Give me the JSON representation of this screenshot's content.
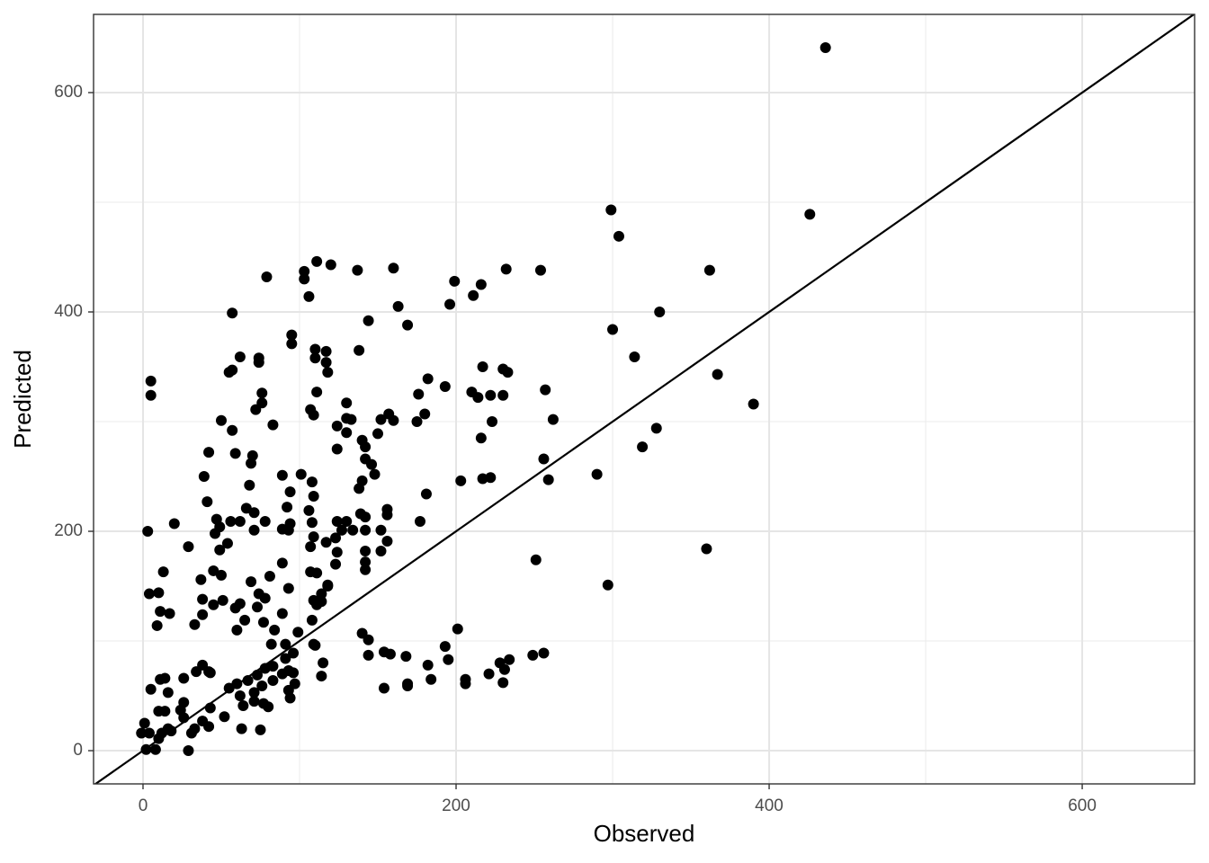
{
  "chart_data": {
    "type": "scatter",
    "x_label": "Observed",
    "y_label": "Predicted",
    "xlim": [
      -31.6,
      671.8
    ],
    "ylim": [
      -30.3,
      671.3
    ],
    "xticks": [
      0,
      200,
      400,
      600
    ],
    "yticks": [
      0,
      200,
      400,
      600
    ],
    "x_minor_grid": [
      100,
      300,
      500
    ],
    "y_minor_grid": [
      100,
      300,
      500
    ],
    "grid": true,
    "identity_line": true,
    "color": "#000000",
    "x": [
      436,
      426,
      299,
      304,
      362,
      330,
      300,
      314,
      367,
      390,
      328,
      319,
      290,
      360,
      297,
      251,
      256,
      259,
      262,
      257,
      254,
      232,
      216,
      199,
      196,
      211,
      233,
      230,
      222,
      214,
      210,
      217,
      193,
      182,
      176,
      180,
      175,
      223,
      230,
      216,
      222,
      217,
      203,
      181,
      177,
      156,
      156,
      156,
      142,
      142,
      142,
      152,
      139,
      142,
      130,
      124,
      123,
      124,
      123,
      117,
      118,
      114,
      109,
      108,
      111,
      107,
      111,
      107,
      109,
      108,
      106,
      109,
      108,
      101,
      94,
      92,
      94,
      93,
      89,
      89,
      89,
      83,
      78,
      76,
      76,
      74,
      74,
      72,
      70,
      69,
      68,
      71,
      71,
      66,
      62,
      62,
      57,
      55,
      57,
      57,
      50,
      59,
      42,
      39,
      41,
      47,
      46,
      56,
      49,
      54,
      49,
      45,
      50,
      37,
      59,
      60,
      51,
      45,
      38,
      38,
      33,
      29,
      20,
      3,
      13,
      4,
      10,
      11,
      9,
      17,
      5,
      5,
      79,
      103,
      111,
      120,
      103,
      137,
      160,
      163,
      169,
      144,
      106,
      95,
      95,
      110,
      117,
      110,
      117,
      118,
      111,
      130,
      130,
      138,
      107,
      109,
      133,
      130,
      124,
      124,
      140,
      142,
      142,
      146,
      148,
      140,
      138,
      150,
      152,
      157,
      160,
      142,
      152,
      134,
      127,
      82,
      91,
      99,
      109,
      115,
      96,
      91,
      83,
      78,
      73,
      67,
      60,
      55,
      62,
      64,
      71,
      77,
      80,
      75,
      63,
      52,
      43,
      42,
      38,
      33,
      31,
      29,
      26,
      24,
      26,
      34,
      43,
      42,
      38,
      26,
      16,
      11,
      14,
      5,
      10,
      14,
      16,
      10,
      8,
      2,
      1,
      -1,
      4,
      12,
      18,
      93,
      94,
      97,
      93,
      89,
      83,
      76,
      71,
      96,
      114,
      140,
      144,
      144,
      154,
      158,
      168,
      154,
      169,
      169,
      182,
      184,
      193,
      195,
      201,
      206,
      206,
      221,
      234,
      231,
      230,
      249,
      256,
      228,
      84,
      77,
      89,
      93,
      81,
      78,
      74,
      73,
      69,
      62,
      65,
      110,
      118,
      114
    ],
    "values": [
      641,
      489,
      493,
      469,
      438,
      400,
      384,
      359,
      343,
      316,
      294,
      277,
      252,
      184,
      151,
      174,
      266,
      247,
      302,
      329,
      438,
      439,
      425,
      428,
      407,
      415,
      345,
      348,
      324,
      322,
      327,
      350,
      332,
      339,
      325,
      307,
      300,
      300,
      324,
      285,
      249,
      248,
      246,
      234,
      209,
      220,
      215,
      191,
      182,
      172,
      165,
      182,
      216,
      213,
      209,
      209,
      194,
      181,
      170,
      190,
      151,
      143,
      137,
      119,
      133,
      163,
      162,
      186,
      195,
      208,
      219,
      232,
      245,
      252,
      236,
      222,
      207,
      201,
      202,
      171,
      251,
      297,
      209,
      317,
      326,
      354,
      358,
      311,
      269,
      262,
      242,
      217,
      201,
      221,
      209,
      359,
      347,
      345,
      399,
      292,
      301,
      271,
      272,
      250,
      227,
      211,
      198,
      209,
      204,
      189,
      183,
      164,
      160,
      156,
      130,
      110,
      137,
      133,
      138,
      124,
      115,
      186,
      207,
      200,
      163,
      143,
      144,
      127,
      114,
      125,
      337,
      324,
      432,
      430,
      446,
      443,
      437,
      438,
      440,
      405,
      388,
      392,
      414,
      379,
      371,
      366,
      364,
      358,
      354,
      345,
      327,
      317,
      303,
      365,
      311,
      306,
      302,
      290,
      296,
      275,
      283,
      277,
      266,
      261,
      252,
      246,
      239,
      289,
      302,
      307,
      301,
      201,
      201,
      201,
      201,
      97,
      97,
      108,
      97,
      80,
      89,
      84,
      77,
      75,
      69,
      64,
      61,
      57,
      50,
      41,
      45,
      43,
      40,
      19,
      20,
      31,
      39,
      22,
      27,
      20,
      16,
      0,
      30,
      37,
      44,
      72,
      71,
      72,
      78,
      66,
      53,
      65,
      66,
      56,
      36,
      36,
      20,
      11,
      1,
      1,
      25,
      16,
      16,
      16,
      18,
      55,
      48,
      61,
      73,
      70,
      64,
      59,
      53,
      71,
      68,
      107,
      101,
      87,
      90,
      88,
      86,
      57,
      61,
      59,
      78,
      65,
      95,
      83,
      111,
      65,
      61,
      70,
      83,
      74,
      62,
      87,
      89,
      80,
      110,
      117,
      125,
      148,
      159,
      139,
      143,
      131,
      154,
      134,
      119,
      96,
      150,
      136
    ]
  }
}
